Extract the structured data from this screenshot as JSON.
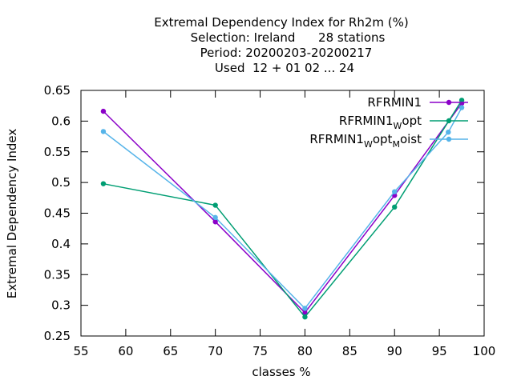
{
  "chart_data": {
    "type": "line",
    "title_lines": [
      "Extremal Dependency Index  for Rh2m (%)",
      "Selection: Ireland      28 stations",
      "Period: 20200203-20200217",
      "Used  12 + 01 02 ... 24"
    ],
    "xlabel": "classes %",
    "ylabel": "Extremal Dependency Index",
    "xlim": [
      55,
      100
    ],
    "ylim": [
      0.25,
      0.65
    ],
    "xticks": [
      55,
      60,
      65,
      70,
      75,
      80,
      85,
      90,
      95,
      100
    ],
    "yticks": [
      0.25,
      0.3,
      0.35,
      0.4,
      0.45,
      0.5,
      0.55,
      0.6,
      0.65
    ],
    "grid": false,
    "legend_position": "top-right",
    "series": [
      {
        "name": "RFRMIN1",
        "label_parts": [
          {
            "t": "RFRMIN1"
          }
        ],
        "color": "#8b00c8",
        "x": [
          57.5,
          70,
          80,
          90,
          97.5
        ],
        "y": [
          0.616,
          0.436,
          0.288,
          0.479,
          0.629
        ]
      },
      {
        "name": "RFRMIN1_W opt",
        "label_parts": [
          {
            "t": "RFRMIN1"
          },
          {
            "t": "W",
            "sub": true
          },
          {
            "t": "opt"
          }
        ],
        "color": "#009e73",
        "x": [
          57.5,
          70,
          80,
          90,
          97.5
        ],
        "y": [
          0.498,
          0.463,
          0.281,
          0.46,
          0.634
        ]
      },
      {
        "name": "RFRMIN1_W opt_M oist",
        "label_parts": [
          {
            "t": "RFRMIN1"
          },
          {
            "t": "W",
            "sub": true
          },
          {
            "t": "opt"
          },
          {
            "t": "M",
            "sub": true
          },
          {
            "t": "oist"
          }
        ],
        "color": "#56b4e9",
        "x": [
          57.5,
          70,
          80,
          90,
          96,
          97.5
        ],
        "y": [
          0.583,
          0.443,
          0.295,
          0.485,
          0.582,
          0.622
        ]
      }
    ]
  }
}
